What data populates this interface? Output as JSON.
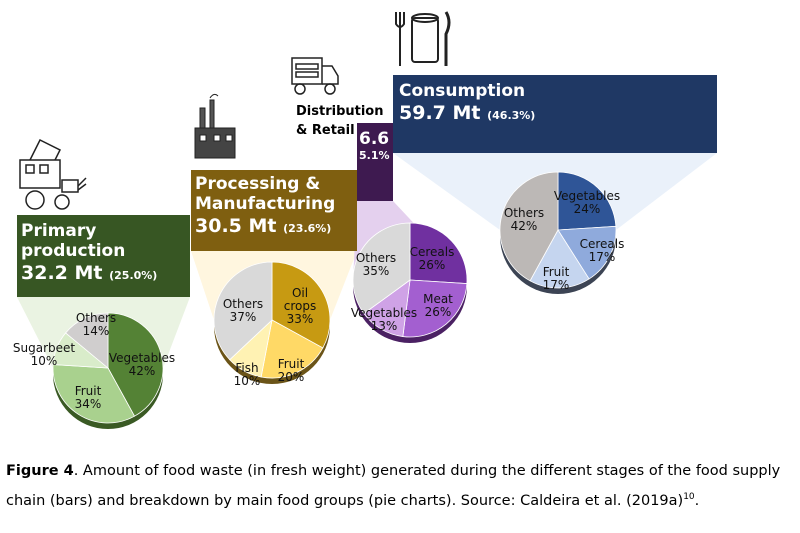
{
  "stages": [
    {
      "id": "primary",
      "title": "Primary production",
      "amount": "32.2 Mt",
      "share": "(25.0%)",
      "color": "#375623",
      "fan": "#eaf3e2"
    },
    {
      "id": "processing",
      "title": "Processing &",
      "title2": "Manufacturing",
      "amount": "30.5 Mt",
      "share": "(23.6%)",
      "color": "#7f5f10",
      "fan": "#fff6df"
    },
    {
      "id": "distribution",
      "title": "Distribution",
      "title2": "& Retail",
      "amount": "6.6",
      "share": "5.1%",
      "color": "#3e1a50",
      "fan": "#e4d0ee"
    },
    {
      "id": "consumption",
      "title": "Consumption",
      "amount": "59.7 Mt",
      "share": "(46.3%)",
      "color": "#1f3864",
      "fan": "#eaf1fa"
    }
  ],
  "chart_data": [
    {
      "type": "pie",
      "title": "Primary production",
      "categories": [
        "Vegetables",
        "Fruit",
        "Sugarbeet",
        "Others"
      ],
      "values": [
        42,
        34,
        10,
        14
      ],
      "labels": [
        "42%",
        "34%",
        "10%",
        "14%"
      ],
      "colors": [
        "#548235",
        "#a9d18e",
        "#d9ecca",
        "#d0cece"
      ],
      "side": "#3a5a24"
    },
    {
      "type": "pie",
      "title": "Processing & Manufacturing",
      "categories": [
        "Oil crops",
        "Fruit",
        "Fish",
        "Others"
      ],
      "values": [
        33,
        20,
        10,
        37
      ],
      "labels": [
        "33%",
        "20%",
        "10%",
        "37%"
      ],
      "colors": [
        "#c79a12",
        "#ffd966",
        "#fff2b3",
        "#d9d9d9"
      ],
      "side": "#6b5418"
    },
    {
      "type": "pie",
      "title": "Distribution & Retail",
      "categories": [
        "Cereals",
        "Meat",
        "Vegetables",
        "Others"
      ],
      "values": [
        26,
        26,
        13,
        35
      ],
      "labels": [
        "26%",
        "26%",
        "13%",
        "35%"
      ],
      "colors": [
        "#7030a0",
        "#a35fd0",
        "#cfa2e6",
        "#d9d9d9"
      ],
      "side": "#4b2163"
    },
    {
      "type": "pie",
      "title": "Consumption",
      "categories": [
        "Vegetables",
        "Cereals",
        "Fruit",
        "Others"
      ],
      "values": [
        24,
        17,
        17,
        42
      ],
      "labels": [
        "24%",
        "17%",
        "17%",
        "42%"
      ],
      "colors": [
        "#2f5597",
        "#8faadc",
        "#c5d5ef",
        "#bcb8b6"
      ],
      "side": "#3c4454"
    }
  ],
  "caption": {
    "label": "Figure 4",
    "text": ". Amount of food waste (in fresh weight) generated during the different stages of the food supply chain (bars) and breakdown by main food groups (pie charts). Source: Caldeira et al. (2019a)",
    "ref": "10",
    "end": "."
  }
}
